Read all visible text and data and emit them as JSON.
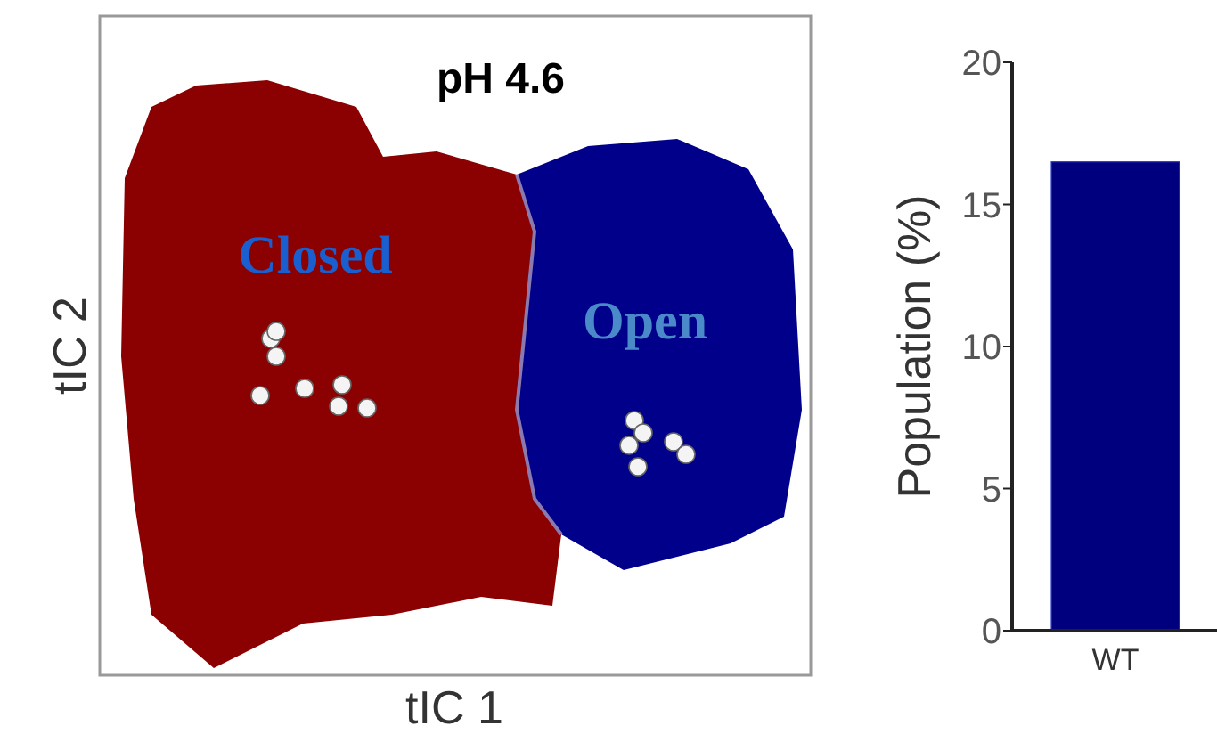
{
  "chart_data": [
    {
      "type": "other",
      "title": "pH 4.6",
      "xlabel": "tIC 1",
      "ylabel": "tIC 2",
      "annotations": [
        "Closed",
        "Open"
      ]
    },
    {
      "type": "bar",
      "ylabel": "Population (%)",
      "categories": [
        "WT"
      ],
      "values": [
        16.5
      ],
      "color": "#00007f",
      "ylim": [
        0,
        20
      ],
      "yticks": [
        0,
        5,
        10,
        15,
        20
      ],
      "grid": false
    }
  ]
}
